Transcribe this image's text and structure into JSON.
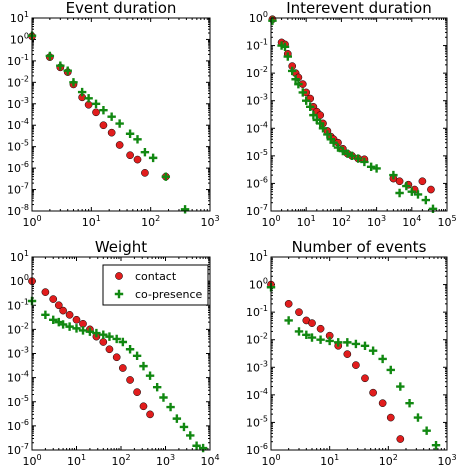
{
  "colors": {
    "contact": "#e11d1d",
    "co_presence": "#118811"
  },
  "chart_data": [
    {
      "type": "scatter",
      "title": "Event duration",
      "xscale": "log",
      "yscale": "log",
      "xlim": [
        1,
        1000
      ],
      "ylim": [
        1e-08,
        10
      ],
      "xticks": [
        {
          "v": 1,
          "m": "10",
          "e": "0"
        },
        {
          "v": 10,
          "m": "10",
          "e": "1"
        },
        {
          "v": 100,
          "m": "10",
          "e": "2"
        },
        {
          "v": 1000,
          "m": "10",
          "e": "3"
        }
      ],
      "yticks": [
        {
          "v": 1e-08,
          "m": "10",
          "e": "-8"
        },
        {
          "v": 1e-07,
          "m": "10",
          "e": "-7"
        },
        {
          "v": 1e-06,
          "m": "10",
          "e": "-6"
        },
        {
          "v": 1e-05,
          "m": "10",
          "e": "-5"
        },
        {
          "v": 0.0001,
          "m": "10",
          "e": "-4"
        },
        {
          "v": 0.001,
          "m": "10",
          "e": "-3"
        },
        {
          "v": 0.01,
          "m": "10",
          "e": "-2"
        },
        {
          "v": 0.1,
          "m": "10",
          "e": "-1"
        },
        {
          "v": 1,
          "m": "10",
          "e": "0"
        },
        {
          "v": 10,
          "m": "10",
          "e": "1"
        }
      ],
      "series": [
        {
          "name": "contact",
          "marker": "circle",
          "color": "#e11d1d",
          "x": [
            1,
            2,
            3,
            4,
            5,
            7,
            9,
            12,
            16,
            22,
            30,
            45,
            60,
            80,
            180
          ],
          "y": [
            1.4,
            0.15,
            0.05,
            0.03,
            0.008,
            0.002,
            0.0009,
            0.0004,
            0.0001,
            4.5e-05,
            1.2e-05,
            4e-06,
            2.5e-06,
            6e-07,
            4e-07
          ]
        },
        {
          "name": "co-presence",
          "marker": "plus",
          "color": "#118811",
          "x": [
            1,
            2,
            3,
            4,
            5,
            7,
            9,
            12,
            16,
            22,
            30,
            45,
            60,
            80,
            110,
            180,
            380
          ],
          "y": [
            1.5,
            0.17,
            0.06,
            0.035,
            0.01,
            0.0035,
            0.0018,
            0.001,
            0.0005,
            0.00025,
            0.00012,
            4e-05,
            2.2e-05,
            5.5e-06,
            3e-06,
            4e-07,
            1.2e-08
          ]
        }
      ]
    },
    {
      "type": "scatter",
      "title": "Interevent duration",
      "xscale": "log",
      "yscale": "log",
      "xlim": [
        1,
        100000
      ],
      "ylim": [
        1e-07,
        1
      ],
      "xticks": [
        {
          "v": 1,
          "m": "10",
          "e": "0"
        },
        {
          "v": 10,
          "m": "10",
          "e": "1"
        },
        {
          "v": 100,
          "m": "10",
          "e": "2"
        },
        {
          "v": 1000,
          "m": "10",
          "e": "3"
        },
        {
          "v": 10000,
          "m": "10",
          "e": "4"
        },
        {
          "v": 100000,
          "m": "10",
          "e": "5"
        }
      ],
      "yticks": [
        {
          "v": 1e-07,
          "m": "10",
          "e": "-7"
        },
        {
          "v": 1e-06,
          "m": "10",
          "e": "-6"
        },
        {
          "v": 1e-05,
          "m": "10",
          "e": "-5"
        },
        {
          "v": 0.0001,
          "m": "10",
          "e": "-4"
        },
        {
          "v": 0.001,
          "m": "10",
          "e": "-3"
        },
        {
          "v": 0.01,
          "m": "10",
          "e": "-2"
        },
        {
          "v": 0.1,
          "m": "10",
          "e": "-1"
        },
        {
          "v": 1,
          "m": "10",
          "e": "0"
        }
      ],
      "series": [
        {
          "name": "contact",
          "marker": "circle",
          "color": "#e11d1d",
          "x": [
            1.1,
            2,
            2.5,
            3,
            4,
            5,
            6,
            8,
            10,
            13,
            16,
            20,
            25,
            30,
            40,
            50,
            60,
            80,
            110,
            150,
            200,
            300,
            450,
            3000,
            4500,
            8000,
            12000,
            20000,
            35000
          ],
          "y": [
            0.9,
            0.13,
            0.11,
            0.05,
            0.018,
            0.01,
            0.007,
            0.004,
            0.002,
            0.0012,
            0.0006,
            0.0004,
            0.0003,
            0.00015,
            8e-05,
            5e-05,
            4e-05,
            3e-05,
            1.8e-05,
            1.2e-05,
            1e-05,
            8e-06,
            7.5e-06,
            1.5e-06,
            1.2e-06,
            9e-07,
            6e-07,
            1.2e-06,
            6e-07
          ]
        },
        {
          "name": "co-presence",
          "marker": "plus",
          "color": "#118811",
          "x": [
            1.1,
            2,
            2.5,
            3,
            4,
            5,
            6,
            8,
            10,
            13,
            16,
            20,
            25,
            30,
            40,
            50,
            60,
            80,
            110,
            150,
            200,
            300,
            450,
            700,
            1000,
            3000,
            4500,
            7000,
            10000,
            15000,
            25000,
            40000
          ],
          "y": [
            0.8,
            0.1,
            0.09,
            0.04,
            0.012,
            0.006,
            0.004,
            0.002,
            0.001,
            0.0006,
            0.0003,
            0.0002,
            0.00015,
            0.0001,
            6e-05,
            4e-05,
            3e-05,
            2e-05,
            1.5e-05,
            1.2e-05,
            1e-05,
            8e-06,
            6e-06,
            4e-06,
            3.5e-06,
            2e-06,
            4.5e-07,
            8e-07,
            5e-07,
            4e-07,
            2.5e-07,
            1.2e-07
          ]
        }
      ]
    },
    {
      "type": "scatter",
      "title": "Weight",
      "xscale": "log",
      "yscale": "log",
      "xlim": [
        1,
        10000
      ],
      "ylim": [
        1e-07,
        10
      ],
      "xticks": [
        {
          "v": 1,
          "m": "10",
          "e": "0"
        },
        {
          "v": 10,
          "m": "10",
          "e": "1"
        },
        {
          "v": 100,
          "m": "10",
          "e": "2"
        },
        {
          "v": 1000,
          "m": "10",
          "e": "3"
        },
        {
          "v": 10000,
          "m": "10",
          "e": "4"
        }
      ],
      "yticks": [
        {
          "v": 1e-07,
          "m": "10",
          "e": "-7"
        },
        {
          "v": 1e-06,
          "m": "10",
          "e": "-6"
        },
        {
          "v": 1e-05,
          "m": "10",
          "e": "-5"
        },
        {
          "v": 0.0001,
          "m": "10",
          "e": "-4"
        },
        {
          "v": 0.001,
          "m": "10",
          "e": "-3"
        },
        {
          "v": 0.01,
          "m": "10",
          "e": "-2"
        },
        {
          "v": 0.1,
          "m": "10",
          "e": "-1"
        },
        {
          "v": 1,
          "m": "10",
          "e": "0"
        },
        {
          "v": 10,
          "m": "10",
          "e": "1"
        }
      ],
      "legend": {
        "position": "top-right",
        "entries": [
          "contact",
          "co-presence"
        ]
      },
      "series": [
        {
          "name": "contact",
          "marker": "circle",
          "color": "#e11d1d",
          "x": [
            1,
            2,
            3,
            4,
            5,
            7,
            10,
            14,
            20,
            28,
            40,
            55,
            80,
            110,
            160,
            230,
            320,
            450
          ],
          "y": [
            1.0,
            0.35,
            0.18,
            0.1,
            0.06,
            0.04,
            0.025,
            0.017,
            0.01,
            0.005,
            0.003,
            0.0015,
            0.0007,
            0.00025,
            8e-05,
            2.5e-05,
            6.5e-06,
            3e-06
          ]
        },
        {
          "name": "co-presence",
          "marker": "plus",
          "color": "#118811",
          "x": [
            1,
            2,
            3,
            4,
            5,
            7,
            10,
            14,
            20,
            28,
            40,
            55,
            80,
            110,
            160,
            230,
            320,
            450,
            650,
            900,
            1300,
            1800,
            2600,
            3600,
            5000,
            7000
          ],
          "y": [
            0.15,
            0.04,
            0.025,
            0.02,
            0.016,
            0.013,
            0.011,
            0.009,
            0.008,
            0.007,
            0.006,
            0.005,
            0.004,
            0.003,
            0.0015,
            0.0008,
            0.0003,
            0.00012,
            4e-05,
            1.5e-05,
            6e-06,
            2e-06,
            9e-07,
            4e-07,
            1.5e-07,
            1.2e-07
          ]
        }
      ]
    },
    {
      "type": "scatter",
      "title": "Number of events",
      "xscale": "log",
      "yscale": "log",
      "xlim": [
        1,
        1000
      ],
      "ylim": [
        1e-06,
        10
      ],
      "xticks": [
        {
          "v": 1,
          "m": "10",
          "e": "0"
        },
        {
          "v": 10,
          "m": "10",
          "e": "1"
        },
        {
          "v": 100,
          "m": "10",
          "e": "2"
        },
        {
          "v": 1000,
          "m": "10",
          "e": "3"
        }
      ],
      "yticks": [
        {
          "v": 1e-06,
          "m": "10",
          "e": "-6"
        },
        {
          "v": 1e-05,
          "m": "10",
          "e": "-5"
        },
        {
          "v": 0.0001,
          "m": "10",
          "e": "-4"
        },
        {
          "v": 0.001,
          "m": "10",
          "e": "-3"
        },
        {
          "v": 0.01,
          "m": "10",
          "e": "-2"
        },
        {
          "v": 0.1,
          "m": "10",
          "e": "-1"
        },
        {
          "v": 1,
          "m": "10",
          "e": "0"
        },
        {
          "v": 10,
          "m": "10",
          "e": "1"
        }
      ],
      "series": [
        {
          "name": "contact",
          "marker": "circle",
          "color": "#e11d1d",
          "x": [
            1,
            2,
            3,
            4,
            5,
            7,
            10,
            14,
            20,
            28,
            40,
            55,
            80,
            110,
            160
          ],
          "y": [
            1.0,
            0.2,
            0.1,
            0.05,
            0.04,
            0.025,
            0.014,
            0.006,
            0.003,
            0.0012,
            0.0004,
            0.00012,
            5e-05,
            1.5e-05,
            2.5e-06
          ]
        },
        {
          "name": "co-presence",
          "marker": "plus",
          "color": "#118811",
          "x": [
            1,
            2,
            3,
            4,
            5,
            7,
            10,
            14,
            20,
            28,
            40,
            55,
            80,
            110,
            160,
            230,
            320,
            450,
            650
          ],
          "y": [
            0.8,
            0.05,
            0.02,
            0.015,
            0.012,
            0.01,
            0.009,
            0.008,
            0.008,
            0.007,
            0.006,
            0.004,
            0.002,
            0.0008,
            0.0002,
            5e-05,
            1.5e-05,
            5e-06,
            1.5e-06
          ]
        }
      ]
    }
  ]
}
